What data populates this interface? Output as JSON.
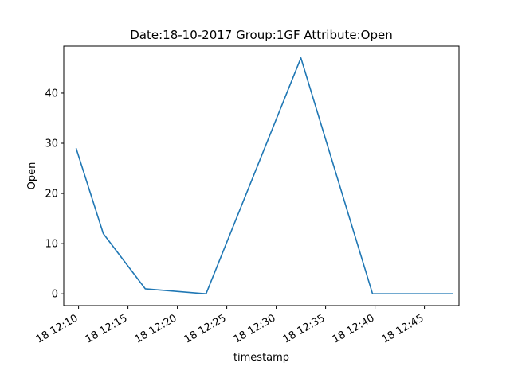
{
  "chart_data": {
    "type": "line",
    "title": "Date:18-10-2017  Group:1GF Attribute:Open",
    "xlabel": "timestamp",
    "ylabel": "Open",
    "x_tick_labels": [
      "18 12:10",
      "18 12:15",
      "18 12:20",
      "18 12:25",
      "18 12:30",
      "18 12:35",
      "18 12:40",
      "18 12:45"
    ],
    "x_tick_minutes": [
      10,
      15,
      20,
      25,
      30,
      35,
      40,
      45
    ],
    "y_ticks": [
      0,
      10,
      20,
      30,
      40
    ],
    "xlim_minutes": [
      8.5,
      48.5
    ],
    "ylim": [
      -2.35,
      49.35
    ],
    "grid": false,
    "series": [
      {
        "color": "#1f77b4",
        "x_minutes": [
          9.75,
          12.5,
          16.75,
          22.9,
          32.5,
          39.75,
          47.9
        ],
        "x": [
          "2017-10-18 12:09:45",
          "2017-10-18 12:12:30",
          "2017-10-18 12:16:45",
          "2017-10-18 12:22:54",
          "2017-10-18 12:32:30",
          "2017-10-18 12:39:45",
          "2017-10-18 12:47:54"
        ],
        "values": [
          29,
          12,
          1,
          0,
          47,
          0,
          0
        ]
      }
    ]
  }
}
